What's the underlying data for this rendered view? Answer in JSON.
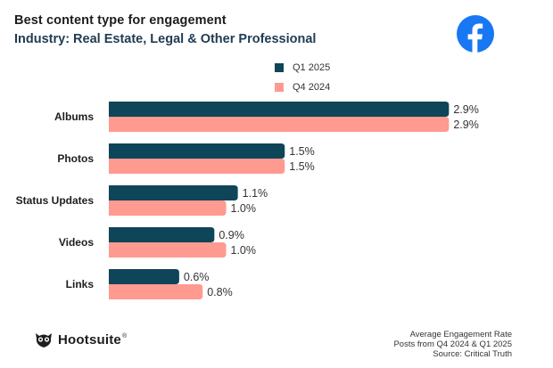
{
  "header": {
    "title": "Best content type for engagement",
    "subtitle": "Industry: Real Estate, Legal & Other Professional"
  },
  "logo": {
    "icon": "facebook-icon",
    "color": "#1877f2"
  },
  "chart_data": {
    "type": "bar",
    "orientation": "horizontal",
    "title": "Best content type for engagement",
    "subtitle": "Industry: Real Estate, Legal & Other Professional",
    "categories": [
      "Albums",
      "Photos",
      "Status Updates",
      "Videos",
      "Links"
    ],
    "series": [
      {
        "name": "Q1 2025",
        "color": "#0f4558",
        "values": [
          2.9,
          1.5,
          1.1,
          0.9,
          0.6
        ],
        "labels": [
          "2.9%",
          "1.5%",
          "1.1%",
          "0.9%",
          "0.6%"
        ]
      },
      {
        "name": "Q4 2024",
        "color": "#ff9a91",
        "values": [
          2.9,
          1.5,
          1.0,
          1.0,
          0.8
        ],
        "labels": [
          "2.9%",
          "1.5%",
          "1.0%",
          "1.0%",
          "0.8%"
        ]
      }
    ],
    "xlim": [
      0,
      3.0
    ],
    "grid": false,
    "legend": "top-center"
  },
  "footer": {
    "brand": "Hootsuite",
    "brand_mark": "®",
    "notes": [
      "Average Engagement Rate",
      "Posts from Q4 2024 & Q1 2025",
      "Source: Critical Truth"
    ]
  }
}
